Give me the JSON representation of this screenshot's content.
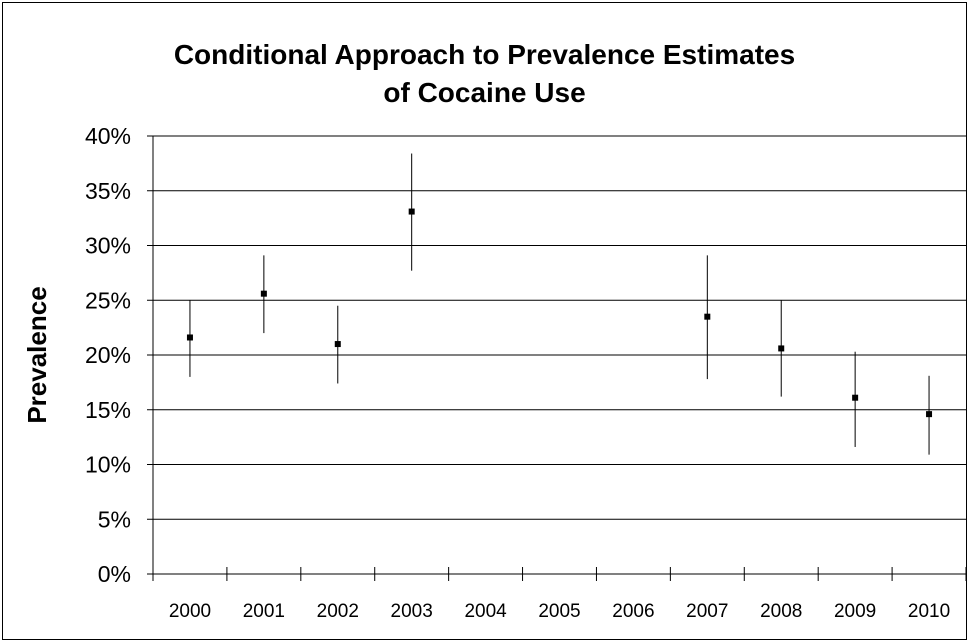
{
  "chart_data": {
    "type": "scatter",
    "title_lines": [
      "Conditional Approach to Prevalence Estimates",
      "of Cocaine Use"
    ],
    "xlabel": "",
    "ylabel": "Prevalence",
    "categories": [
      "2000",
      "2001",
      "2002",
      "2003",
      "2004",
      "2005",
      "2006",
      "2007",
      "2008",
      "2009",
      "2010"
    ],
    "y_ticks": [
      "0%",
      "5%",
      "10%",
      "15%",
      "20%",
      "25%",
      "30%",
      "35%",
      "40%"
    ],
    "ylim": [
      0,
      40
    ],
    "grid": true,
    "error_bars": true,
    "points": [
      {
        "x": "2000",
        "y": 21.6,
        "low": 18.0,
        "high": 25.0
      },
      {
        "x": "2001",
        "y": 25.6,
        "low": 22.0,
        "high": 29.1
      },
      {
        "x": "2002",
        "y": 21.0,
        "low": 17.4,
        "high": 24.5
      },
      {
        "x": "2003",
        "y": 33.1,
        "low": 27.7,
        "high": 38.4
      },
      {
        "x": "2007",
        "y": 23.5,
        "low": 17.8,
        "high": 29.1
      },
      {
        "x": "2008",
        "y": 20.6,
        "low": 16.2,
        "high": 25.0
      },
      {
        "x": "2009",
        "y": 16.1,
        "low": 11.6,
        "high": 20.3
      },
      {
        "x": "2010",
        "y": 14.6,
        "low": 10.9,
        "high": 18.1
      }
    ],
    "colors": {
      "marker": "#000000",
      "error_bar": "#000000",
      "grid": "#000000",
      "axis": "#000000"
    }
  }
}
